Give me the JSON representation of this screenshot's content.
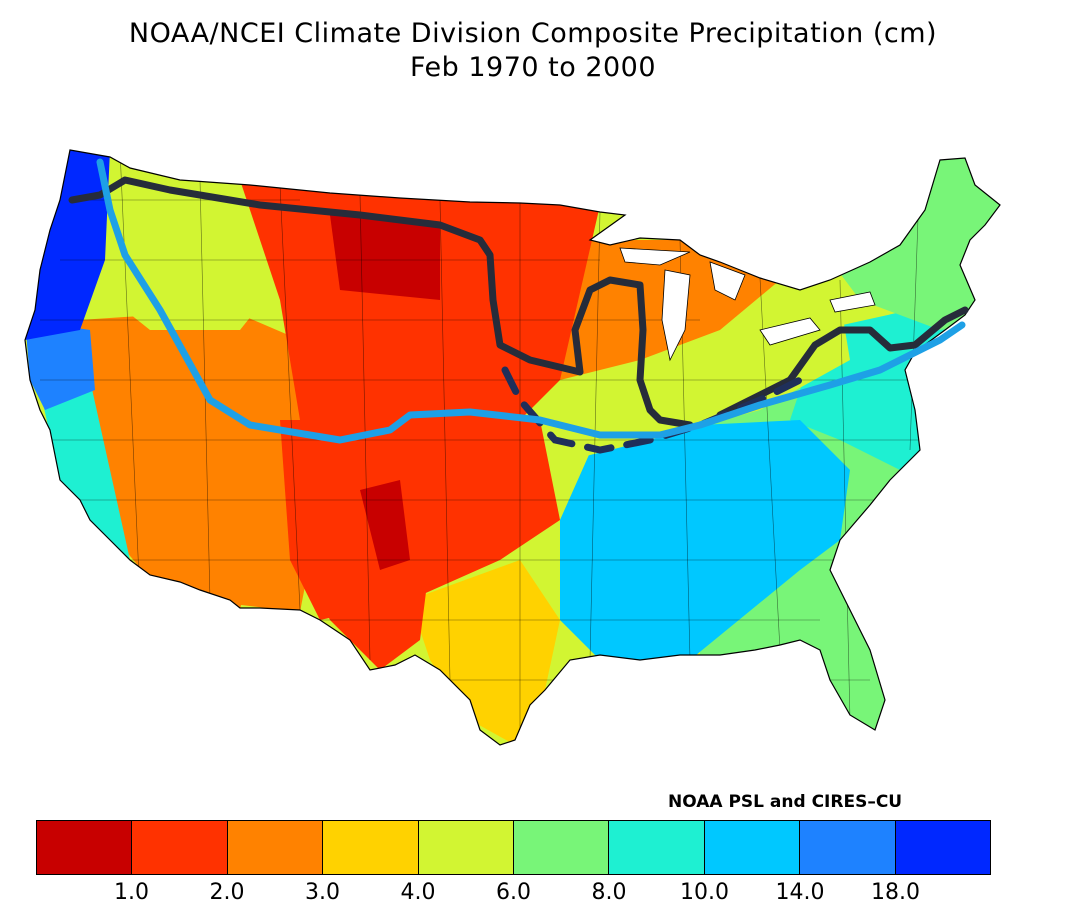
{
  "title": "NOAA/NCEI Climate Division Composite Precipitation (cm)",
  "subtitle": "Feb 1970 to 2000",
  "credit": "NOAA PSL and CIRES–CU",
  "legend": {
    "colors": [
      "#c80000",
      "#ff3200",
      "#ff8200",
      "#ffd200",
      "#d2f532",
      "#78f578",
      "#1ef0d2",
      "#00c8ff",
      "#1e82ff",
      "#0028ff"
    ],
    "labels": [
      "1.0",
      "2.0",
      "3.0",
      "4.0",
      "6.0",
      "8.0",
      "10.0",
      "14.0",
      "18.0"
    ]
  },
  "regions": [
    {
      "name": "pacific-nw-coast",
      "color": "#0028ff"
    },
    {
      "name": "northern-california-coast",
      "color": "#1e82ff"
    },
    {
      "name": "california-valley",
      "color": "#1ef0d2"
    },
    {
      "name": "great-basin",
      "color": "#ff8200"
    },
    {
      "name": "southwest",
      "color": "#ff8200"
    },
    {
      "name": "northern-rockies-interior",
      "color": "#d2f532"
    },
    {
      "name": "northern-plains",
      "color": "#ff3200"
    },
    {
      "name": "north-dakota-core",
      "color": "#c80000"
    },
    {
      "name": "central-plains",
      "color": "#ff3200"
    },
    {
      "name": "new-mexico-core",
      "color": "#c80000"
    },
    {
      "name": "west-texas",
      "color": "#ff3200"
    },
    {
      "name": "central-texas",
      "color": "#ffd200"
    },
    {
      "name": "upper-midwest",
      "color": "#ff8200"
    },
    {
      "name": "ohio-valley",
      "color": "#d2f532"
    },
    {
      "name": "gulf-coast-southeast",
      "color": "#00c8ff"
    },
    {
      "name": "southeast-atlantic",
      "color": "#78f578"
    },
    {
      "name": "mid-atlantic",
      "color": "#1ef0d2"
    },
    {
      "name": "new-england",
      "color": "#78f578"
    }
  ],
  "overlay_colors": {
    "dark_line": "#262c3a",
    "light_line": "#1ea0e6",
    "dashed_line": "#1f2f5a"
  }
}
